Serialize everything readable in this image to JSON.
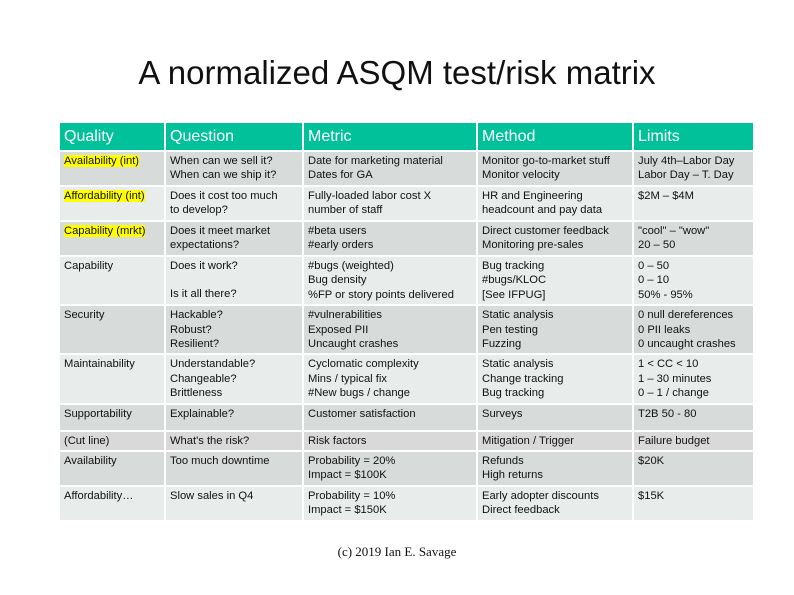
{
  "title": "A normalized ASQM test/risk matrix",
  "headers": [
    "Quality",
    "Question",
    "Metric",
    "Method",
    "Limits"
  ],
  "rows": [
    {
      "quality": "Availability (int)",
      "highlight": true,
      "question": [
        "When can we sell it?",
        "When can we ship it?"
      ],
      "metric": [
        "Date for marketing material",
        "Dates for GA"
      ],
      "method": [
        "Monitor go-to-market stuff",
        "Monitor velocity"
      ],
      "limits": [
        "July 4th–Labor Day",
        "Labor Day – T. Day"
      ]
    },
    {
      "quality": "Affordability (int)",
      "highlight": true,
      "question": [
        "Does it cost too much",
        "to develop?"
      ],
      "metric": [
        "Fully-loaded labor cost X",
        "number of staff"
      ],
      "method": [
        "HR and Engineering",
        "headcount and pay data"
      ],
      "limits": [
        "$2M – $4M"
      ]
    },
    {
      "quality": "Capability (mrkt)",
      "highlight": true,
      "question": [
        "Does it meet market",
        "expectations?"
      ],
      "metric": [
        "#beta users",
        "#early orders"
      ],
      "method": [
        "Direct customer feedback",
        "Monitoring pre-sales"
      ],
      "limits": [
        "\"cool\" – \"wow\"",
        "20 – 50"
      ]
    },
    {
      "quality": "Capability",
      "highlight": false,
      "question": [
        "Does it work?",
        "",
        "Is it all there?"
      ],
      "metric": [
        "#bugs (weighted)",
        "Bug density",
        "%FP or story points delivered"
      ],
      "method": [
        "Bug tracking",
        "#bugs/KLOC",
        "[See IFPUG]"
      ],
      "limits": [
        "0 – 50",
        "0 – 10",
        "50% - 95%"
      ]
    },
    {
      "quality": "Security",
      "highlight": false,
      "question": [
        "Hackable?",
        "Robust?",
        "Resilient?"
      ],
      "metric": [
        "#vulnerabilities",
        "Exposed PII",
        "Uncaught crashes"
      ],
      "method": [
        "Static analysis",
        "Pen testing",
        "Fuzzing"
      ],
      "limits": [
        "0 null dereferences",
        "0 PII leaks",
        "0 uncaught crashes"
      ]
    },
    {
      "quality": "Maintainability",
      "highlight": false,
      "question": [
        "Understandable?",
        "Changeable?",
        "Brittleness"
      ],
      "metric": [
        "Cyclomatic complexity",
        "Mins / typical fix",
        "#New bugs / change"
      ],
      "method": [
        "Static analysis",
        "Change tracking",
        "Bug tracking"
      ],
      "limits": [
        "1 < CC < 10",
        "1 – 30 minutes",
        "0 – 1 / change"
      ]
    },
    {
      "quality": "Supportability",
      "highlight": false,
      "question": [
        "Explainable?"
      ],
      "metric": [
        "Customer satisfaction"
      ],
      "method": [
        "Surveys"
      ],
      "limits": [
        "T2B 50 - 80"
      ]
    }
  ],
  "cut_line": {
    "quality": "(Cut line)",
    "question": "What's the risk?",
    "metric": "Risk factors",
    "method": "Mitigation / Trigger",
    "limits": "Failure budget"
  },
  "risk_rows": [
    {
      "quality": "Availability",
      "question": [
        "Too much downtime"
      ],
      "metric": [
        "Probability = 20%",
        "Impact = $100K"
      ],
      "method": [
        "Refunds",
        "High returns"
      ],
      "limits": [
        "$20K"
      ]
    },
    {
      "quality": "Affordability…",
      "question": [
        "Slow sales in Q4"
      ],
      "metric": [
        "Probability = 10%",
        "Impact = $150K"
      ],
      "method": [
        "Early adopter discounts",
        "Direct feedback"
      ],
      "limits": [
        "$15K"
      ]
    }
  ],
  "footer": "(c) 2019 Ian E. Savage"
}
